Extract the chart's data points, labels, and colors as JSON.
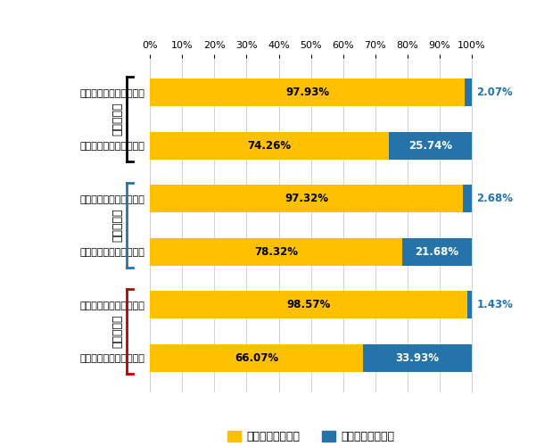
{
  "bars": [
    {
      "label": "有機溶剤の生涯経験なし",
      "group": 0,
      "no_smoke": 97.93,
      "smoke": 2.07
    },
    {
      "label": "有機溶剤の生涯経験あり",
      "group": 0,
      "no_smoke": 74.26,
      "smoke": 25.74
    },
    {
      "label": "有機溶剤の生涯経験なし",
      "group": 1,
      "no_smoke": 97.32,
      "smoke": 2.68
    },
    {
      "label": "有機溶剤の生涯経験あり",
      "group": 1,
      "no_smoke": 78.32,
      "smoke": 21.68
    },
    {
      "label": "有機溶剤の生涯経験なし",
      "group": 2,
      "no_smoke": 98.57,
      "smoke": 1.43
    },
    {
      "label": "有機溶剤の生涯経験あり",
      "group": 2,
      "no_smoke": 66.07,
      "smoke": 33.93
    }
  ],
  "color_no_smoke": "#FFC000",
  "color_smoke": "#2574A9",
  "legend_no_smoke": "生涯喫煙経験なし",
  "legend_smoke": "生涯喫煙経験あり",
  "group_names": [
    "中学生全体",
    "男子中学生",
    "女子中学生"
  ],
  "group_bracket_colors": [
    "#000000",
    "#2574A9",
    "#C00000"
  ],
  "bar_height": 0.52,
  "background_color": "#FFFFFF",
  "grid_color": "#CCCCCC",
  "outside_label_color": "#2574A9",
  "xticks": [
    0,
    10,
    20,
    30,
    40,
    50,
    60,
    70,
    80,
    90,
    100
  ]
}
